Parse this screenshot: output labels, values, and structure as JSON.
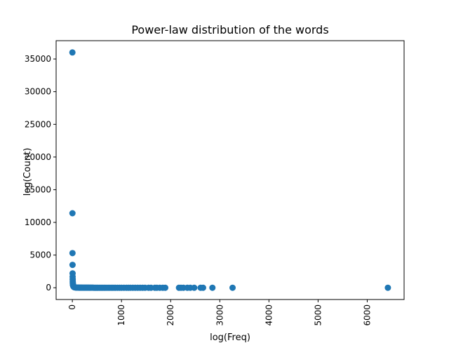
{
  "chart_data": {
    "type": "scatter",
    "title": "Power-law distribution of the words",
    "xlabel": "log(Freq)",
    "ylabel": "log(Count)",
    "xlim": [
      -330,
      6750
    ],
    "ylim": [
      -1800,
      37800
    ],
    "xticks": [
      "0",
      "1000",
      "2000",
      "3000",
      "4000",
      "5000",
      "6000"
    ],
    "yticks": [
      "0",
      "5000",
      "10000",
      "15000",
      "20000",
      "25000",
      "30000",
      "35000"
    ],
    "marker_color": "#1f77b4",
    "points": [
      [
        1,
        36000
      ],
      [
        2,
        11400
      ],
      [
        3,
        5300
      ],
      [
        4,
        3500
      ],
      [
        5,
        2200
      ],
      [
        6,
        1700
      ],
      [
        7,
        1300
      ],
      [
        8,
        1000
      ],
      [
        9,
        800
      ],
      [
        10,
        650
      ],
      [
        12,
        500
      ],
      [
        14,
        400
      ],
      [
        16,
        320
      ],
      [
        19,
        260
      ],
      [
        22,
        210
      ],
      [
        26,
        170
      ],
      [
        30,
        140
      ],
      [
        35,
        110
      ],
      [
        40,
        90
      ],
      [
        45,
        75
      ],
      [
        50,
        60
      ],
      [
        60,
        50
      ],
      [
        70,
        40
      ],
      [
        80,
        32
      ],
      [
        90,
        26
      ],
      [
        100,
        22
      ],
      [
        110,
        20
      ],
      [
        120,
        18
      ],
      [
        130,
        16
      ],
      [
        140,
        15
      ],
      [
        150,
        14
      ],
      [
        160,
        13
      ],
      [
        170,
        12
      ],
      [
        180,
        11
      ],
      [
        190,
        10
      ],
      [
        200,
        10
      ],
      [
        215,
        9
      ],
      [
        230,
        9
      ],
      [
        245,
        8
      ],
      [
        260,
        8
      ],
      [
        275,
        7
      ],
      [
        290,
        7
      ],
      [
        305,
        6
      ],
      [
        320,
        6
      ],
      [
        340,
        6
      ],
      [
        360,
        5
      ],
      [
        380,
        5
      ],
      [
        400,
        5
      ],
      [
        420,
        5
      ],
      [
        440,
        4
      ],
      [
        460,
        4
      ],
      [
        480,
        4
      ],
      [
        500,
        4
      ],
      [
        520,
        4
      ],
      [
        545,
        3
      ],
      [
        570,
        3
      ],
      [
        595,
        3
      ],
      [
        620,
        3
      ],
      [
        645,
        3
      ],
      [
        670,
        3
      ],
      [
        700,
        3
      ],
      [
        730,
        3
      ],
      [
        760,
        2
      ],
      [
        790,
        2
      ],
      [
        820,
        2
      ],
      [
        850,
        2
      ],
      [
        880,
        2
      ],
      [
        920,
        2
      ],
      [
        960,
        2
      ],
      [
        1000,
        2
      ],
      [
        1050,
        2
      ],
      [
        1100,
        2
      ],
      [
        1140,
        2
      ],
      [
        1180,
        2
      ],
      [
        1230,
        2
      ],
      [
        1280,
        2
      ],
      [
        1330,
        1
      ],
      [
        1380,
        1
      ],
      [
        1430,
        1
      ],
      [
        1480,
        1
      ],
      [
        1550,
        1
      ],
      [
        1600,
        1
      ],
      [
        1680,
        1
      ],
      [
        1720,
        1
      ],
      [
        1780,
        1
      ],
      [
        1840,
        1
      ],
      [
        1890,
        1
      ],
      [
        2170,
        1
      ],
      [
        2210,
        1
      ],
      [
        2260,
        1
      ],
      [
        2340,
        1
      ],
      [
        2400,
        1
      ],
      [
        2480,
        1
      ],
      [
        2610,
        1
      ],
      [
        2660,
        1
      ],
      [
        2850,
        1
      ],
      [
        3260,
        1
      ],
      [
        6420,
        1
      ]
    ]
  }
}
